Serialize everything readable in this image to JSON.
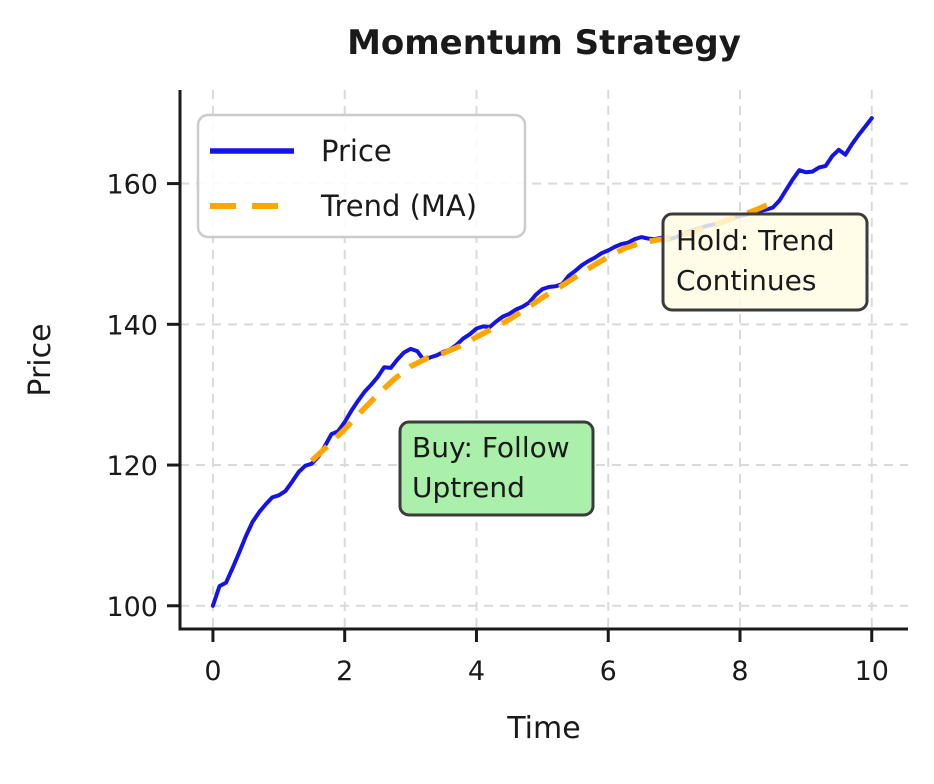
{
  "chart_data": {
    "type": "line",
    "title": "Momentum Strategy",
    "xlabel": "Time",
    "ylabel": "Price",
    "xlim": [
      -0.5,
      10.55
    ],
    "ylim": [
      96.7,
      173.3
    ],
    "xticks": [
      0,
      2,
      4,
      6,
      8,
      10
    ],
    "yticks": [
      100,
      120,
      140,
      160
    ],
    "grid": true,
    "grid_color": "#d9d9d9",
    "legend": {
      "position": "upper left",
      "entries": [
        {
          "label": "Price",
          "color": "#1414e6",
          "style": "solid"
        },
        {
          "label": "Trend (MA)",
          "color": "#ffa500",
          "style": "dashed"
        }
      ]
    },
    "series": [
      {
        "name": "Price",
        "color": "#1414e6",
        "style": "solid",
        "width": 4,
        "points": [
          [
            0.0,
            100.0
          ],
          [
            0.1,
            102.8
          ],
          [
            0.2,
            103.3
          ],
          [
            0.3,
            105.4
          ],
          [
            0.4,
            107.6
          ],
          [
            0.5,
            109.9
          ],
          [
            0.6,
            111.9
          ],
          [
            0.7,
            113.3
          ],
          [
            0.8,
            114.4
          ],
          [
            0.9,
            115.4
          ],
          [
            1.0,
            115.7
          ],
          [
            1.1,
            116.3
          ],
          [
            1.2,
            117.6
          ],
          [
            1.3,
            119.0
          ],
          [
            1.4,
            119.9
          ],
          [
            1.5,
            120.2
          ],
          [
            1.6,
            121.2
          ],
          [
            1.7,
            122.7
          ],
          [
            1.8,
            124.4
          ],
          [
            1.9,
            124.8
          ],
          [
            2.0,
            126.1
          ],
          [
            2.1,
            127.7
          ],
          [
            2.2,
            129.1
          ],
          [
            2.3,
            130.4
          ],
          [
            2.4,
            131.4
          ],
          [
            2.5,
            132.5
          ],
          [
            2.6,
            133.9
          ],
          [
            2.7,
            133.8
          ],
          [
            2.8,
            135.0
          ],
          [
            2.9,
            136.0
          ],
          [
            3.0,
            136.5
          ],
          [
            3.1,
            136.2
          ],
          [
            3.2,
            134.9
          ],
          [
            3.3,
            135.3
          ],
          [
            3.4,
            135.6
          ],
          [
            3.5,
            136.1
          ],
          [
            3.6,
            136.4
          ],
          [
            3.7,
            137.1
          ],
          [
            3.8,
            138.0
          ],
          [
            3.9,
            138.6
          ],
          [
            4.0,
            139.4
          ],
          [
            4.1,
            139.7
          ],
          [
            4.2,
            139.6
          ],
          [
            4.3,
            140.4
          ],
          [
            4.4,
            141.1
          ],
          [
            4.5,
            141.5
          ],
          [
            4.6,
            142.1
          ],
          [
            4.7,
            142.5
          ],
          [
            4.8,
            143.1
          ],
          [
            4.9,
            144.2
          ],
          [
            5.0,
            145.0
          ],
          [
            5.1,
            145.3
          ],
          [
            5.2,
            145.4
          ],
          [
            5.3,
            145.7
          ],
          [
            5.4,
            146.9
          ],
          [
            5.5,
            147.6
          ],
          [
            5.6,
            148.4
          ],
          [
            5.7,
            149.0
          ],
          [
            5.8,
            149.5
          ],
          [
            5.9,
            150.1
          ],
          [
            6.0,
            150.5
          ],
          [
            6.1,
            151.0
          ],
          [
            6.2,
            151.4
          ],
          [
            6.3,
            151.6
          ],
          [
            6.4,
            152.1
          ],
          [
            6.5,
            152.4
          ],
          [
            6.6,
            152.2
          ],
          [
            6.7,
            152.1
          ],
          [
            6.8,
            152.3
          ],
          [
            6.9,
            152.0
          ],
          [
            7.0,
            152.3
          ],
          [
            7.1,
            152.7
          ],
          [
            7.2,
            153.1
          ],
          [
            7.3,
            153.4
          ],
          [
            7.4,
            153.7
          ],
          [
            7.5,
            154.0
          ],
          [
            7.6,
            154.2
          ],
          [
            7.7,
            154.5
          ],
          [
            7.8,
            154.9
          ],
          [
            7.9,
            155.2
          ],
          [
            8.0,
            155.4
          ],
          [
            8.1,
            155.6
          ],
          [
            8.2,
            155.9
          ],
          [
            8.3,
            156.1
          ],
          [
            8.4,
            156.3
          ],
          [
            8.5,
            156.6
          ],
          [
            8.6,
            157.6
          ],
          [
            8.7,
            159.1
          ],
          [
            8.8,
            160.6
          ],
          [
            8.9,
            161.9
          ],
          [
            9.0,
            161.6
          ],
          [
            9.1,
            161.7
          ],
          [
            9.2,
            162.3
          ],
          [
            9.3,
            162.5
          ],
          [
            9.4,
            163.9
          ],
          [
            9.5,
            164.8
          ],
          [
            9.6,
            164.1
          ],
          [
            9.7,
            165.6
          ],
          [
            9.8,
            166.9
          ],
          [
            9.9,
            168.1
          ],
          [
            10.0,
            169.3
          ]
        ]
      },
      {
        "name": "Trend (MA)",
        "color": "#ffa500",
        "style": "dashed",
        "width": 5.5,
        "points": [
          [
            1.5,
            120.6
          ],
          [
            1.75,
            122.8
          ],
          [
            2.0,
            125.1
          ],
          [
            2.25,
            127.6
          ],
          [
            2.5,
            130.0
          ],
          [
            2.75,
            132.2
          ],
          [
            3.0,
            134.0
          ],
          [
            3.25,
            135.2
          ],
          [
            3.5,
            135.9
          ],
          [
            3.75,
            136.9
          ],
          [
            4.0,
            138.2
          ],
          [
            4.25,
            139.4
          ],
          [
            4.5,
            140.7
          ],
          [
            4.75,
            142.2
          ],
          [
            5.0,
            143.8
          ],
          [
            5.25,
            145.2
          ],
          [
            5.5,
            146.7
          ],
          [
            5.75,
            148.2
          ],
          [
            6.0,
            149.6
          ],
          [
            6.25,
            150.8
          ],
          [
            6.5,
            151.6
          ],
          [
            6.75,
            152.0
          ],
          [
            7.0,
            152.4
          ],
          [
            7.25,
            153.0
          ],
          [
            7.5,
            153.8
          ],
          [
            7.75,
            154.6
          ],
          [
            8.0,
            155.4
          ],
          [
            8.25,
            156.3
          ],
          [
            8.5,
            157.3
          ]
        ]
      }
    ],
    "annotations": [
      {
        "name": "buy",
        "line1": "Buy: Follow",
        "line2": "Uptrend",
        "bg": "#aaf0aa",
        "border": "#3b3b3b",
        "anchor_x": 2.9,
        "anchor_y": 120.5
      },
      {
        "name": "hold",
        "line1": "Hold: Trend",
        "line2": "Continues",
        "bg": "#fffde4",
        "border": "#3b3b3b",
        "anchor_x": 6.9,
        "anchor_y": 150.5
      }
    ]
  }
}
